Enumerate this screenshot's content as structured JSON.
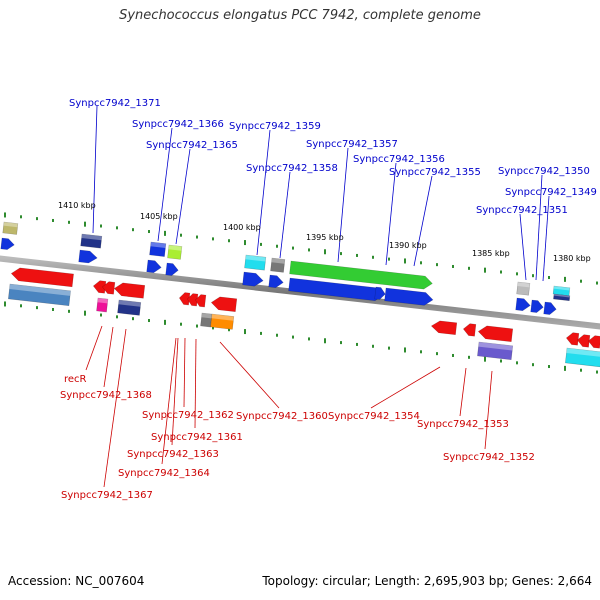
{
  "title": "Synechococcus elongatus PCC 7942, complete genome",
  "footer": {
    "accession": "Accession: NC_007604",
    "summary": "Topology: circular; Length: 2,695,903 bp; Genes: 2,664"
  },
  "colors": {
    "backbone": "#8a8a8a",
    "dots": "#2e8b2e",
    "top_label": "#0000cc",
    "bottom_label": "#cc0000",
    "red": "#ee1111",
    "blue": "#1133dd",
    "green": "#33cc33",
    "cyan": "#22ddee",
    "steel": "#4a84c0",
    "navy": "#223388",
    "slate": "#6a5acd",
    "magenta": "#ee1199",
    "orange": "#ff8c00",
    "lime": "#aaee33",
    "grey": "#777777",
    "lightgrey": "#bbbbbb",
    "khaki": "#bdb76b"
  },
  "ticks": [
    "1410 kbp",
    "1405 kbp",
    "1400 kbp",
    "1395 kbp",
    "1390 kbp",
    "1385 kbp",
    "1380 kbp"
  ],
  "top_labels": [
    "Synpcc7942_1371",
    "Synpcc7942_1366",
    "Synpcc7942_1365",
    "Synpcc7942_1359",
    "Synpcc7942_1358",
    "Synpcc7942_1357",
    "Synpcc7942_1356",
    "Synpcc7942_1355",
    "Synpcc7942_1350",
    "Synpcc7942_1349",
    "Synpcc7942_1351"
  ],
  "bottom_labels": [
    "recR",
    "Synpcc7942_1368",
    "Synpcc7942_1362",
    "Synpcc7942_1361",
    "Synpcc7942_1363",
    "Synpcc7942_1364",
    "Synpcc7942_1367",
    "Synpcc7942_1360",
    "Synpcc7942_1354",
    "Synpcc7942_1353",
    "Synpcc7942_1352"
  ]
}
